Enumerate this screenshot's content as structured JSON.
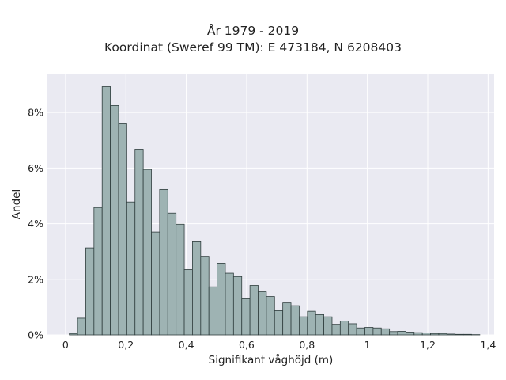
{
  "chart_data": {
    "type": "bar",
    "title": "År 1979 - 2019",
    "subtitle": "Koordinat (Sweref 99 TM): E 473184, N 6208403",
    "xlabel": "Signifikant våghöjd (m)",
    "ylabel": "Andel",
    "xlim": [
      -0.06,
      1.42
    ],
    "ylim": [
      0,
      0.094
    ],
    "xticks": [
      0,
      0.2,
      0.4,
      0.6,
      0.8,
      1,
      1.2,
      1.4
    ],
    "xtick_labels": [
      "0",
      "0,2",
      "0,4",
      "0,6",
      "0,8",
      "1",
      "1,2",
      "1,4"
    ],
    "yticks": [
      0,
      0.02,
      0.04,
      0.06,
      0.08
    ],
    "ytick_labels": [
      "0%",
      "2%",
      "4%",
      "6%",
      "8%"
    ],
    "bin_start": 0.0125,
    "bin_width": 0.0272,
    "values": [
      0.0005,
      0.006,
      0.0313,
      0.0458,
      0.0893,
      0.0825,
      0.0762,
      0.0478,
      0.0668,
      0.0595,
      0.037,
      0.0523,
      0.0438,
      0.0398,
      0.0235,
      0.0335,
      0.0283,
      0.0173,
      0.0258,
      0.0222,
      0.021,
      0.013,
      0.0178,
      0.0155,
      0.0138,
      0.0087,
      0.0115,
      0.0105,
      0.0065,
      0.0085,
      0.0073,
      0.0065,
      0.0038,
      0.005,
      0.004,
      0.0025,
      0.0027,
      0.0025,
      0.0022,
      0.0012,
      0.0013,
      0.001,
      0.0008,
      0.0007,
      0.0005,
      0.0005,
      0.0003,
      0.0002,
      0.0002,
      0.0001
    ],
    "grid": true,
    "colors": {
      "plot_background": "#eaeaf2",
      "grid": "#ffffff",
      "bar_fill": "#9eb3b3",
      "bar_edge": "#2f3d3d"
    }
  }
}
